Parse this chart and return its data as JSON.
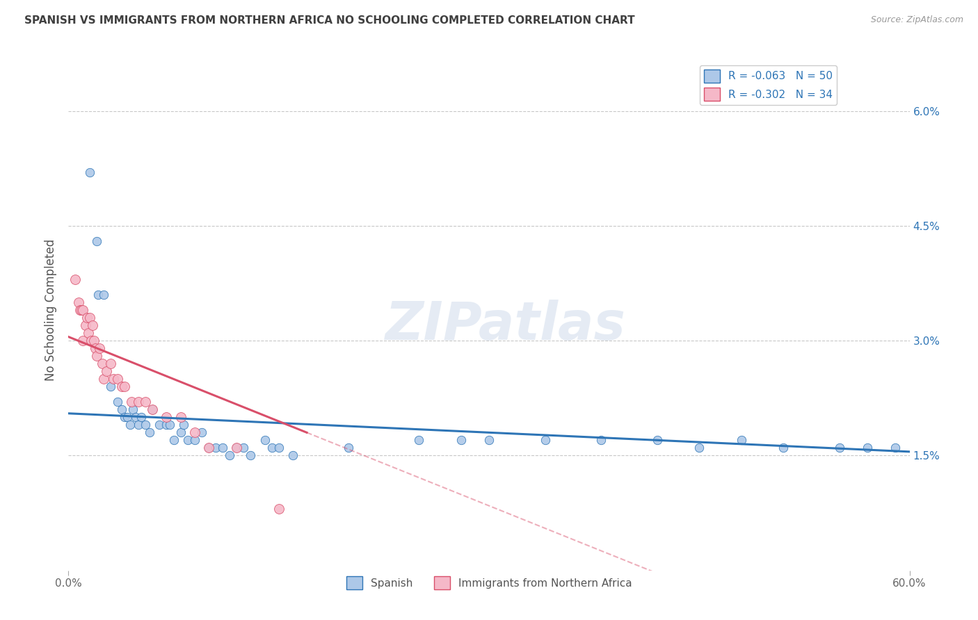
{
  "title": "SPANISH VS IMMIGRANTS FROM NORTHERN AFRICA NO SCHOOLING COMPLETED CORRELATION CHART",
  "source": "Source: ZipAtlas.com",
  "ylabel": "No Schooling Completed",
  "watermark": "ZIPatlas",
  "legend_blue_r": "R = -0.063",
  "legend_blue_n": "N = 50",
  "legend_pink_r": "R = -0.302",
  "legend_pink_n": "N = 34",
  "xlim": [
    0.0,
    0.6
  ],
  "ylim": [
    0.0,
    0.068
  ],
  "xtick_vals": [
    0.0,
    0.6
  ],
  "xtick_labels": [
    "0.0%",
    "60.0%"
  ],
  "ytick_vals": [
    0.015,
    0.03,
    0.045,
    0.06
  ],
  "ytick_labels": [
    "1.5%",
    "3.0%",
    "4.5%",
    "6.0%"
  ],
  "blue_color": "#adc8e8",
  "pink_color": "#f5b8c8",
  "blue_line_color": "#2e75b6",
  "pink_line_color": "#d94f6a",
  "background_color": "#ffffff",
  "grid_color": "#c8c8c8",
  "title_color": "#404040",
  "blue_scatter": [
    [
      0.015,
      0.052
    ],
    [
      0.02,
      0.043
    ],
    [
      0.021,
      0.036
    ],
    [
      0.025,
      0.036
    ],
    [
      0.03,
      0.024
    ],
    [
      0.035,
      0.022
    ],
    [
      0.038,
      0.021
    ],
    [
      0.04,
      0.02
    ],
    [
      0.042,
      0.02
    ],
    [
      0.044,
      0.019
    ],
    [
      0.046,
      0.021
    ],
    [
      0.048,
      0.02
    ],
    [
      0.05,
      0.019
    ],
    [
      0.052,
      0.02
    ],
    [
      0.055,
      0.019
    ],
    [
      0.058,
      0.018
    ],
    [
      0.06,
      0.021
    ],
    [
      0.065,
      0.019
    ],
    [
      0.07,
      0.019
    ],
    [
      0.072,
      0.019
    ],
    [
      0.075,
      0.017
    ],
    [
      0.08,
      0.018
    ],
    [
      0.082,
      0.019
    ],
    [
      0.085,
      0.017
    ],
    [
      0.09,
      0.017
    ],
    [
      0.095,
      0.018
    ],
    [
      0.1,
      0.016
    ],
    [
      0.105,
      0.016
    ],
    [
      0.11,
      0.016
    ],
    [
      0.115,
      0.015
    ],
    [
      0.12,
      0.016
    ],
    [
      0.125,
      0.016
    ],
    [
      0.13,
      0.015
    ],
    [
      0.14,
      0.017
    ],
    [
      0.145,
      0.016
    ],
    [
      0.15,
      0.016
    ],
    [
      0.16,
      0.015
    ],
    [
      0.2,
      0.016
    ],
    [
      0.25,
      0.017
    ],
    [
      0.28,
      0.017
    ],
    [
      0.3,
      0.017
    ],
    [
      0.34,
      0.017
    ],
    [
      0.38,
      0.017
    ],
    [
      0.42,
      0.017
    ],
    [
      0.45,
      0.016
    ],
    [
      0.48,
      0.017
    ],
    [
      0.51,
      0.016
    ],
    [
      0.55,
      0.016
    ],
    [
      0.57,
      0.016
    ],
    [
      0.59,
      0.016
    ]
  ],
  "pink_scatter": [
    [
      0.005,
      0.038
    ],
    [
      0.007,
      0.035
    ],
    [
      0.008,
      0.034
    ],
    [
      0.009,
      0.034
    ],
    [
      0.01,
      0.034
    ],
    [
      0.01,
      0.03
    ],
    [
      0.012,
      0.032
    ],
    [
      0.013,
      0.033
    ],
    [
      0.014,
      0.031
    ],
    [
      0.015,
      0.033
    ],
    [
      0.016,
      0.03
    ],
    [
      0.017,
      0.032
    ],
    [
      0.018,
      0.03
    ],
    [
      0.019,
      0.029
    ],
    [
      0.02,
      0.028
    ],
    [
      0.022,
      0.029
    ],
    [
      0.024,
      0.027
    ],
    [
      0.025,
      0.025
    ],
    [
      0.027,
      0.026
    ],
    [
      0.03,
      0.027
    ],
    [
      0.032,
      0.025
    ],
    [
      0.035,
      0.025
    ],
    [
      0.038,
      0.024
    ],
    [
      0.04,
      0.024
    ],
    [
      0.045,
      0.022
    ],
    [
      0.05,
      0.022
    ],
    [
      0.055,
      0.022
    ],
    [
      0.06,
      0.021
    ],
    [
      0.07,
      0.02
    ],
    [
      0.08,
      0.02
    ],
    [
      0.09,
      0.018
    ],
    [
      0.1,
      0.016
    ],
    [
      0.12,
      0.016
    ],
    [
      0.15,
      0.008
    ]
  ],
  "blue_dot_size": 80,
  "pink_dot_size": 100
}
